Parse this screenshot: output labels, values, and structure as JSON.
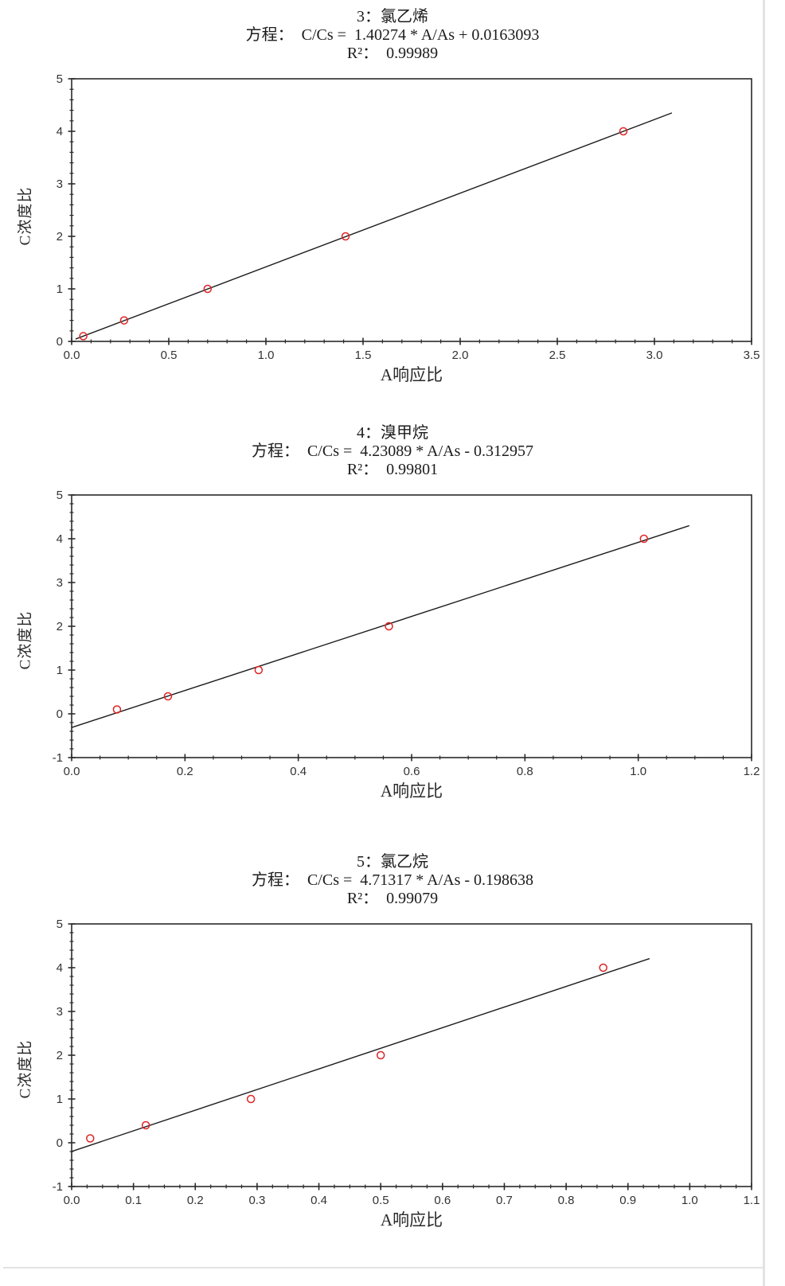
{
  "page": {
    "background": "#ffffff",
    "table_rule_color": "#e3e3e3"
  },
  "chart_data": [
    {
      "type": "scatter",
      "title": "3：氯乙烯",
      "equation_label": "方程：",
      "equation": "C/Cs =  1.40274 * A/As + 0.0163093",
      "r2_label": "R²：",
      "r2": "0.99989",
      "xlabel": "A响应比",
      "ylabel": "C浓度比",
      "xlim": [
        0,
        3.5
      ],
      "ylim": [
        0,
        5
      ],
      "x_major": 0.5,
      "x_minor": 0.1,
      "x_decimals": 1,
      "y_major": 1,
      "y_minor": 0.2,
      "grid": false,
      "legend": "none",
      "fit": {
        "slope": 1.40274,
        "intercept": 0.0163093,
        "x_start": 0.02,
        "x_end": 3.09
      },
      "points": [
        [
          0.06,
          0.1
        ],
        [
          0.27,
          0.4
        ],
        [
          0.7,
          1.0
        ],
        [
          1.41,
          2.0
        ],
        [
          2.84,
          4.0
        ]
      ],
      "point_color": "#e02424",
      "line_color": "#1c1c1c",
      "axis_color": "#2a2a2a",
      "tick_label_color": "#333333"
    },
    {
      "type": "scatter",
      "title": "4：溴甲烷",
      "equation_label": "方程：",
      "equation": "C/Cs =  4.23089 * A/As - 0.312957",
      "r2_label": "R²：",
      "r2": "0.99801",
      "xlabel": "A响应比",
      "ylabel": "C浓度比",
      "xlim": [
        0,
        1.2
      ],
      "ylim": [
        -1,
        5
      ],
      "x_major": 0.2,
      "x_minor": 0.05,
      "x_decimals": 1,
      "y_major": 1,
      "y_minor": 0.2,
      "grid": false,
      "legend": "none",
      "fit": {
        "slope": 4.23089,
        "intercept": -0.312957,
        "x_start": 0.0,
        "x_end": 1.09
      },
      "points": [
        [
          0.08,
          0.1
        ],
        [
          0.17,
          0.4
        ],
        [
          0.33,
          1.0
        ],
        [
          0.56,
          2.0
        ],
        [
          1.01,
          4.0
        ]
      ],
      "point_color": "#e02424",
      "line_color": "#1c1c1c",
      "axis_color": "#2a2a2a",
      "tick_label_color": "#333333"
    },
    {
      "type": "scatter",
      "title": "5：氯乙烷",
      "equation_label": "方程：",
      "equation": "C/Cs =  4.71317 * A/As - 0.198638",
      "r2_label": "R²：",
      "r2": "0.99079",
      "xlabel": "A响应比",
      "ylabel": "C浓度比",
      "xlim": [
        0,
        1.1
      ],
      "ylim": [
        -1,
        5
      ],
      "x_major": 0.1,
      "x_minor": 0.025,
      "x_decimals": 1,
      "y_major": 1,
      "y_minor": 0.2,
      "grid": false,
      "legend": "none",
      "fit": {
        "slope": 4.71317,
        "intercept": -0.198638,
        "x_start": 0.0,
        "x_end": 0.935
      },
      "points": [
        [
          0.03,
          0.1
        ],
        [
          0.12,
          0.4
        ],
        [
          0.29,
          1.0
        ],
        [
          0.5,
          2.0
        ],
        [
          0.86,
          4.0
        ]
      ],
      "point_color": "#e02424",
      "line_color": "#1c1c1c",
      "axis_color": "#2a2a2a",
      "tick_label_color": "#333333"
    }
  ]
}
